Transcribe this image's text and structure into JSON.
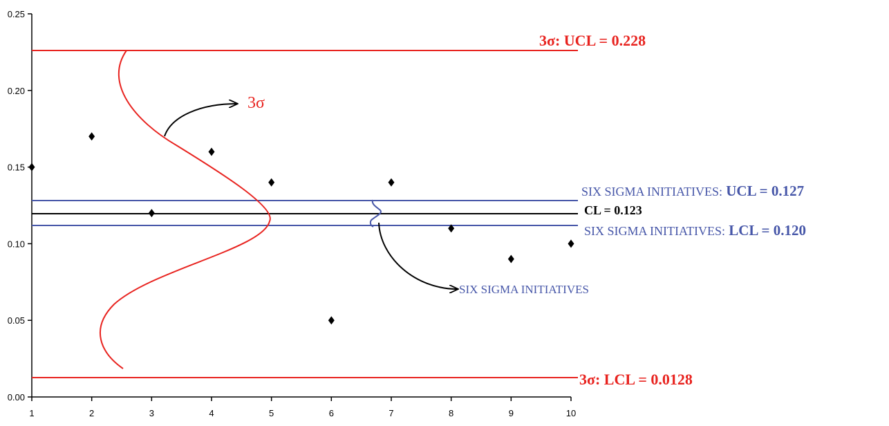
{
  "chart_data": {
    "type": "scatter",
    "title": "",
    "xlabel": "",
    "ylabel": "",
    "x": [
      1,
      2,
      3,
      4,
      5,
      6,
      7,
      8,
      9,
      10
    ],
    "y": [
      0.15,
      0.17,
      0.12,
      0.16,
      0.14,
      0.05,
      0.14,
      0.11,
      0.09,
      0.1
    ],
    "xlim": [
      1,
      10
    ],
    "ylim": [
      0,
      0.25
    ],
    "x_ticks": [
      "1",
      "2",
      "3",
      "4",
      "5",
      "6",
      "7",
      "8",
      "9",
      "10"
    ],
    "y_ticks": [
      "0.00",
      "0.05",
      "0.10",
      "0.15",
      "0.20",
      "0.25"
    ],
    "grid": false,
    "marker": "diamond",
    "marker_color": "#000000",
    "control_lines": [
      {
        "id": "ucl-3sigma",
        "prefix": "3σ:",
        "text": "UCL = 0.228",
        "value": 0.228,
        "color": "#e8231f"
      },
      {
        "id": "ucl-six-sigma",
        "prefix": "SIX SIGMA INITIATIVES:",
        "text": "UCL = 0.127",
        "value": 0.127,
        "color": "#4656a8"
      },
      {
        "id": "cl",
        "prefix": "",
        "text": "CL = 0.123",
        "value": 0.123,
        "color": "#000000"
      },
      {
        "id": "lcl-six-sigma",
        "prefix": "SIX SIGMA INITIATIVES:",
        "text": "LCL = 0.120",
        "value": 0.12,
        "color": "#4656a8"
      },
      {
        "id": "lcl-3sigma",
        "prefix": "3σ:",
        "text": "LCL = 0.0128",
        "value": 0.0128,
        "color": "#e8231f"
      }
    ],
    "annotations": [
      {
        "id": "three-sigma-label",
        "text": "3σ",
        "color": "#e8231f"
      },
      {
        "id": "six-sigma-label",
        "text": "SIX SIGMA INITIATIVES",
        "color": "#4656a8"
      }
    ]
  }
}
